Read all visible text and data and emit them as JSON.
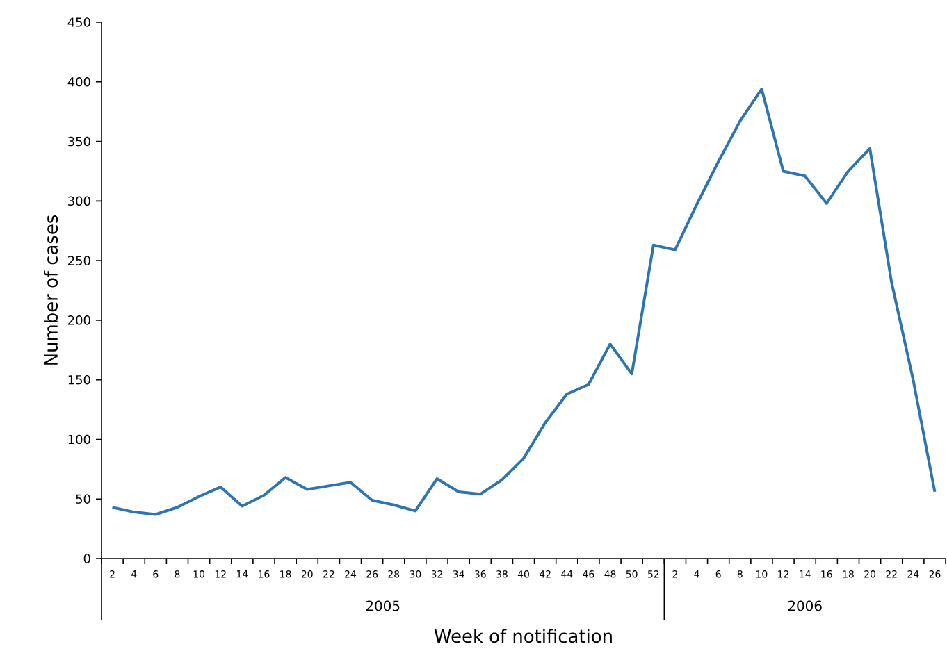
{
  "chart_data": {
    "type": "line",
    "xlabel": "Week of notification",
    "ylabel": "Number of cases",
    "categories": [
      "2",
      "4",
      "6",
      "8",
      "10",
      "12",
      "14",
      "16",
      "18",
      "20",
      "22",
      "24",
      "26",
      "28",
      "30",
      "32",
      "34",
      "36",
      "38",
      "40",
      "42",
      "44",
      "46",
      "48",
      "50",
      "52",
      "2",
      "4",
      "6",
      "8",
      "10",
      "12",
      "14",
      "16",
      "18",
      "20",
      "22",
      "24",
      "26"
    ],
    "series": [
      {
        "color": "#2e75b0",
        "values": [
          43,
          39,
          37,
          43,
          52,
          60,
          44,
          53,
          68,
          58,
          61,
          64,
          49,
          45,
          40,
          67,
          56,
          54,
          66,
          84,
          114,
          138,
          146,
          180,
          155,
          263,
          259,
          297,
          333,
          367,
          394,
          325,
          321,
          298,
          325,
          344,
          232,
          150,
          56
        ]
      }
    ],
    "ylim": [
      0,
      450
    ],
    "yticks": [
      0,
      50,
      100,
      150,
      200,
      250,
      300,
      350,
      400,
      450
    ],
    "annotations": [
      "2005",
      "2006"
    ],
    "grid": false,
    "marker": "none",
    "line_style": "solid"
  }
}
